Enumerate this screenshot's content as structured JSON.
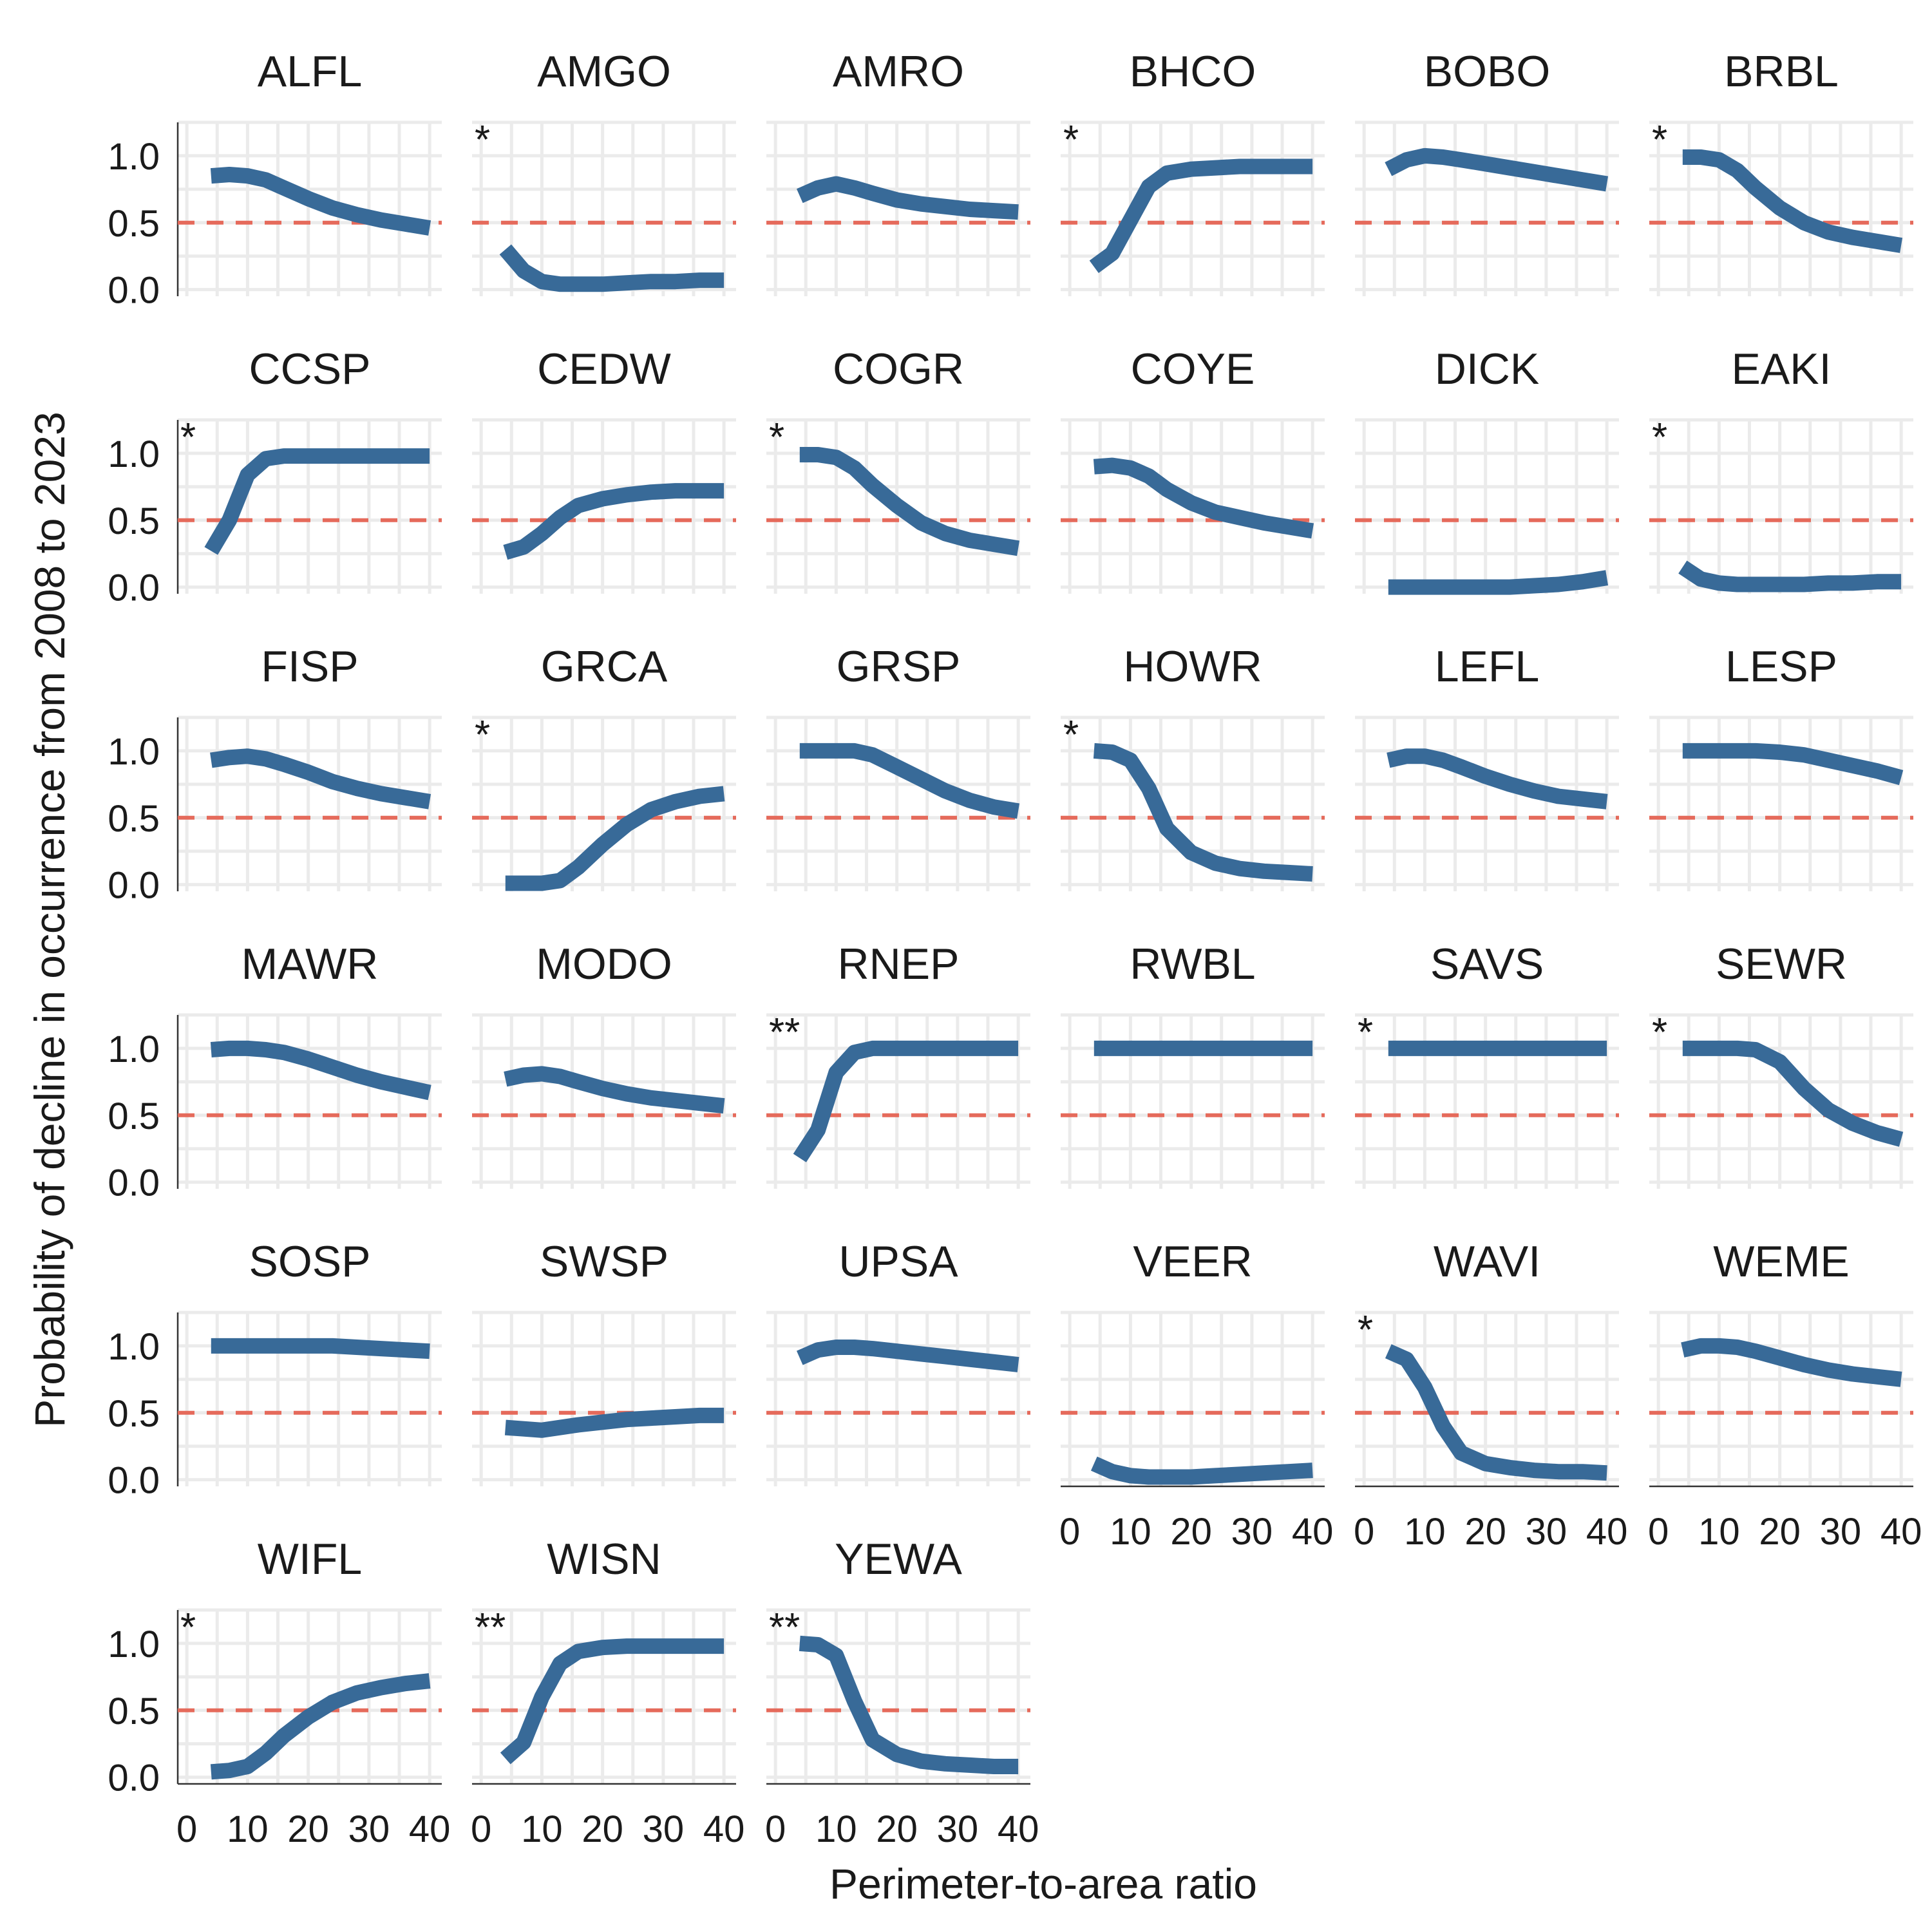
{
  "chart_data": {
    "type": "line",
    "layout": "facet-grid",
    "facet_columns": 6,
    "xlabel": "Perimeter-to-area ratio",
    "ylabel": "Probability of decline in occurrence from 2008 to 2023",
    "x_ticks": [
      0,
      10,
      20,
      30,
      40
    ],
    "y_ticks": [
      0.0,
      0.5,
      1.0
    ],
    "y_tick_labels": [
      "0.0",
      "0.5",
      "1.0"
    ],
    "xlim": [
      -1.5,
      42
    ],
    "ylim": [
      -0.05,
      1.25
    ],
    "reference_line": {
      "y": 0.5,
      "style": "dashed"
    },
    "colors": {
      "line": "#386a98",
      "reference": "#e56a5b",
      "grid": "#ebebeb",
      "axis": "#333333"
    },
    "x": [
      4,
      7,
      10,
      13,
      16,
      20,
      24,
      28,
      32,
      36,
      40
    ],
    "panels": [
      {
        "name": "ALFL",
        "sig": "",
        "values": [
          0.85,
          0.86,
          0.85,
          0.82,
          0.76,
          0.68,
          0.61,
          0.56,
          0.52,
          0.49,
          0.46
        ]
      },
      {
        "name": "AMGO",
        "sig": "*",
        "values": [
          0.3,
          0.14,
          0.06,
          0.04,
          0.04,
          0.04,
          0.05,
          0.06,
          0.06,
          0.07,
          0.07
        ]
      },
      {
        "name": "AMRO",
        "sig": "",
        "values": [
          0.7,
          0.76,
          0.79,
          0.76,
          0.72,
          0.67,
          0.64,
          0.62,
          0.6,
          0.59,
          0.58
        ]
      },
      {
        "name": "BHCO",
        "sig": "*",
        "values": [
          0.17,
          0.27,
          0.52,
          0.77,
          0.87,
          0.9,
          0.91,
          0.92,
          0.92,
          0.92,
          0.92
        ]
      },
      {
        "name": "BOBO",
        "sig": "",
        "values": [
          0.9,
          0.97,
          1.0,
          0.99,
          0.97,
          0.94,
          0.91,
          0.88,
          0.85,
          0.82,
          0.79
        ]
      },
      {
        "name": "BRBL",
        "sig": "*",
        "values": [
          0.99,
          0.99,
          0.97,
          0.89,
          0.76,
          0.61,
          0.5,
          0.43,
          0.39,
          0.36,
          0.33
        ]
      },
      {
        "name": "CCSP",
        "sig": "*",
        "values": [
          0.27,
          0.5,
          0.84,
          0.96,
          0.98,
          0.98,
          0.98,
          0.98,
          0.98,
          0.98,
          0.98
        ]
      },
      {
        "name": "CEDW",
        "sig": "",
        "values": [
          0.26,
          0.3,
          0.4,
          0.52,
          0.61,
          0.66,
          0.69,
          0.71,
          0.72,
          0.72,
          0.72
        ]
      },
      {
        "name": "COGR",
        "sig": "*",
        "values": [
          0.99,
          0.99,
          0.97,
          0.89,
          0.76,
          0.61,
          0.48,
          0.4,
          0.35,
          0.32,
          0.29
        ]
      },
      {
        "name": "COYE",
        "sig": "",
        "values": [
          0.9,
          0.91,
          0.89,
          0.83,
          0.73,
          0.63,
          0.56,
          0.52,
          0.48,
          0.45,
          0.42
        ]
      },
      {
        "name": "DICK",
        "sig": "",
        "values": [
          0.0,
          0.0,
          0.0,
          0.0,
          0.0,
          0.0,
          0.0,
          0.01,
          0.02,
          0.04,
          0.07
        ]
      },
      {
        "name": "EAKI",
        "sig": "*",
        "values": [
          0.15,
          0.06,
          0.03,
          0.02,
          0.02,
          0.02,
          0.02,
          0.03,
          0.03,
          0.04,
          0.04
        ]
      },
      {
        "name": "FISP",
        "sig": "",
        "values": [
          0.93,
          0.95,
          0.96,
          0.94,
          0.9,
          0.84,
          0.77,
          0.72,
          0.68,
          0.65,
          0.62
        ]
      },
      {
        "name": "GRCA",
        "sig": "*",
        "values": [
          0.01,
          0.01,
          0.01,
          0.03,
          0.13,
          0.3,
          0.45,
          0.56,
          0.62,
          0.66,
          0.68
        ]
      },
      {
        "name": "GRSP",
        "sig": "",
        "values": [
          1.0,
          1.0,
          1.0,
          1.0,
          0.97,
          0.88,
          0.79,
          0.7,
          0.63,
          0.58,
          0.55
        ]
      },
      {
        "name": "HOWR",
        "sig": "*",
        "values": [
          1.0,
          0.99,
          0.93,
          0.72,
          0.42,
          0.24,
          0.16,
          0.12,
          0.1,
          0.09,
          0.08
        ]
      },
      {
        "name": "LEFL",
        "sig": "",
        "values": [
          0.93,
          0.96,
          0.96,
          0.93,
          0.88,
          0.81,
          0.75,
          0.7,
          0.66,
          0.64,
          0.62
        ]
      },
      {
        "name": "LESP",
        "sig": "",
        "values": [
          1.0,
          1.0,
          1.0,
          1.0,
          1.0,
          0.99,
          0.97,
          0.93,
          0.89,
          0.85,
          0.8
        ]
      },
      {
        "name": "MAWR",
        "sig": "",
        "values": [
          0.99,
          1.0,
          1.0,
          0.99,
          0.97,
          0.92,
          0.86,
          0.8,
          0.75,
          0.71,
          0.67
        ]
      },
      {
        "name": "MODO",
        "sig": "",
        "values": [
          0.77,
          0.8,
          0.81,
          0.79,
          0.75,
          0.7,
          0.66,
          0.63,
          0.61,
          0.59,
          0.57
        ]
      },
      {
        "name": "RNEP",
        "sig": "**",
        "values": [
          0.18,
          0.39,
          0.82,
          0.97,
          1.0,
          1.0,
          1.0,
          1.0,
          1.0,
          1.0,
          1.0
        ]
      },
      {
        "name": "RWBL",
        "sig": "",
        "values": [
          1.0,
          1.0,
          1.0,
          1.0,
          1.0,
          1.0,
          1.0,
          1.0,
          1.0,
          1.0,
          1.0
        ]
      },
      {
        "name": "SAVS",
        "sig": "*",
        "values": [
          1.0,
          1.0,
          1.0,
          1.0,
          1.0,
          1.0,
          1.0,
          1.0,
          1.0,
          1.0,
          1.0
        ]
      },
      {
        "name": "SEWR",
        "sig": "*",
        "values": [
          1.0,
          1.0,
          1.0,
          1.0,
          0.99,
          0.9,
          0.7,
          0.54,
          0.44,
          0.37,
          0.32
        ]
      },
      {
        "name": "SOSP",
        "sig": "",
        "values": [
          1.0,
          1.0,
          1.0,
          1.0,
          1.0,
          1.0,
          1.0,
          0.99,
          0.98,
          0.97,
          0.96
        ]
      },
      {
        "name": "SWSP",
        "sig": "",
        "values": [
          0.39,
          0.38,
          0.37,
          0.39,
          0.41,
          0.43,
          0.45,
          0.46,
          0.47,
          0.48,
          0.48
        ]
      },
      {
        "name": "UPSA",
        "sig": "",
        "values": [
          0.91,
          0.97,
          0.99,
          0.99,
          0.98,
          0.96,
          0.94,
          0.92,
          0.9,
          0.88,
          0.86
        ]
      },
      {
        "name": "VEER",
        "sig": "",
        "values": [
          0.12,
          0.06,
          0.03,
          0.02,
          0.02,
          0.02,
          0.03,
          0.04,
          0.05,
          0.06,
          0.07
        ]
      },
      {
        "name": "WAVI",
        "sig": "*",
        "values": [
          0.96,
          0.9,
          0.69,
          0.4,
          0.2,
          0.12,
          0.09,
          0.07,
          0.06,
          0.06,
          0.05
        ]
      },
      {
        "name": "WEME",
        "sig": "",
        "values": [
          0.97,
          1.0,
          1.0,
          0.99,
          0.96,
          0.91,
          0.86,
          0.82,
          0.79,
          0.77,
          0.75
        ]
      },
      {
        "name": "WIFL",
        "sig": "*",
        "values": [
          0.04,
          0.05,
          0.08,
          0.18,
          0.31,
          0.45,
          0.56,
          0.63,
          0.67,
          0.7,
          0.72
        ]
      },
      {
        "name": "WISN",
        "sig": "**",
        "values": [
          0.14,
          0.26,
          0.6,
          0.85,
          0.94,
          0.97,
          0.98,
          0.98,
          0.98,
          0.98,
          0.98
        ]
      },
      {
        "name": "YEWA",
        "sig": "**",
        "values": [
          1.0,
          0.99,
          0.91,
          0.57,
          0.28,
          0.17,
          0.12,
          0.1,
          0.09,
          0.08,
          0.08
        ]
      }
    ]
  }
}
